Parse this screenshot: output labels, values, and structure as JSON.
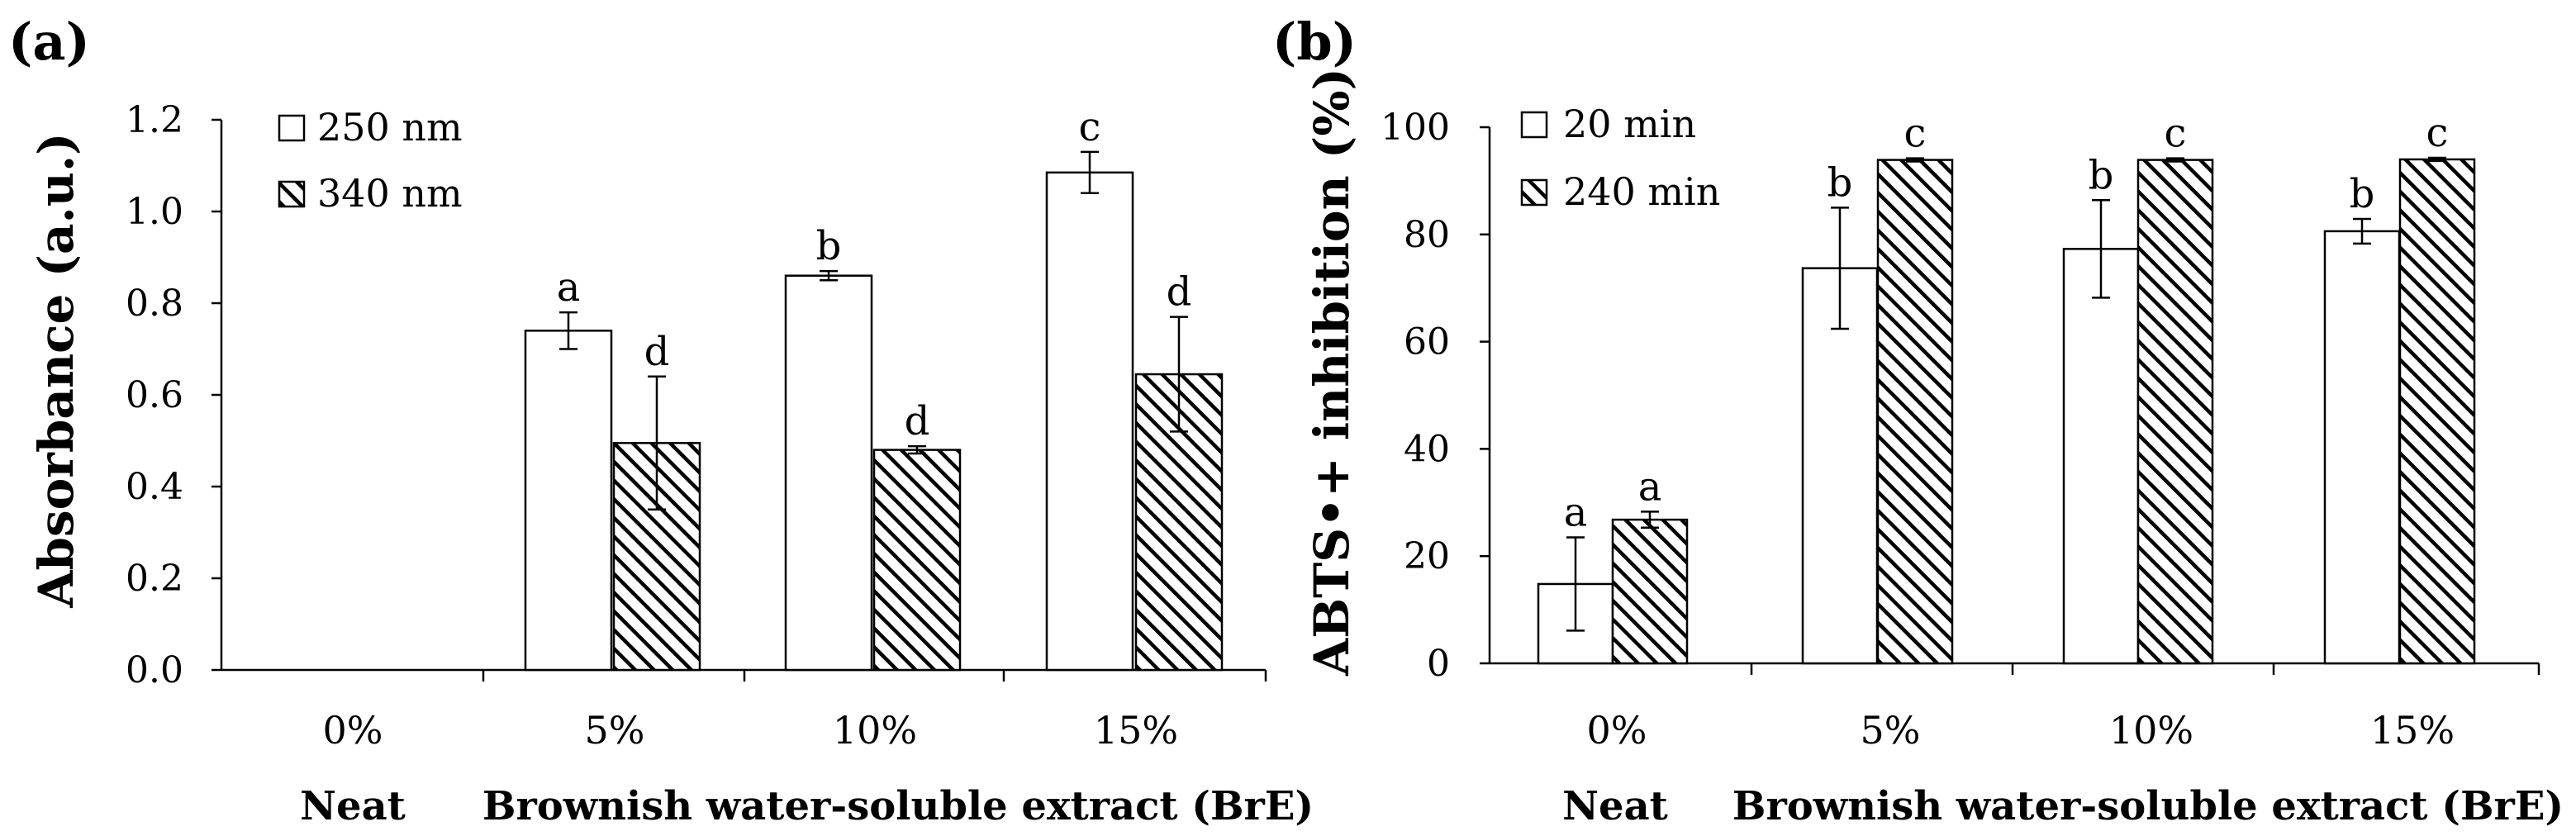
{
  "chart_data": [
    {
      "type": "bar",
      "panel": "(a)",
      "ylabel": "Absorbance (a.u.)",
      "ylim": [
        0,
        1.2
      ],
      "yticks": [
        "0.0",
        "0.2",
        "0.4",
        "0.6",
        "0.8",
        "1.0",
        "1.2"
      ],
      "categories": [
        "0%",
        "5%",
        "10%",
        "15%"
      ],
      "group_labels": [
        "Neat",
        "Brownish water-soluble extract (BrE)"
      ],
      "series": [
        {
          "name": "250 nm",
          "pattern": "open",
          "values": [
            0,
            0.74,
            0.86,
            1.085
          ],
          "errors": [
            0,
            0.04,
            0.01,
            0.045
          ],
          "letters": [
            "",
            "a",
            "b",
            "c"
          ]
        },
        {
          "name": "340 nm",
          "pattern": "hatched",
          "values": [
            0,
            0.495,
            0.48,
            0.645
          ],
          "errors": [
            0,
            0.145,
            0.008,
            0.125
          ],
          "letters": [
            "",
            "d",
            "d",
            "d"
          ]
        }
      ]
    },
    {
      "type": "bar",
      "panel": "(b)",
      "ylabel": "ABTS•+ inhibition (%)",
      "ylim": [
        0,
        100
      ],
      "yticks": [
        "0",
        "20",
        "40",
        "60",
        "80",
        "100"
      ],
      "categories": [
        "0%",
        "5%",
        "10%",
        "15%"
      ],
      "group_labels": [
        "Neat",
        "Brownish water-soluble extract (BrE)"
      ],
      "series": [
        {
          "name": "20 min",
          "pattern": "open",
          "values": [
            14.8,
            73.7,
            77.3,
            80.6
          ],
          "errors": [
            8.7,
            11.3,
            9.1,
            2.3
          ],
          "letters": [
            "a",
            "b",
            "b",
            "b"
          ]
        },
        {
          "name": "240 min",
          "pattern": "hatched",
          "values": [
            26.8,
            93.9,
            93.9,
            94.0
          ],
          "errors": [
            1.5,
            0.3,
            0.3,
            0.3
          ],
          "letters": [
            "a",
            "c",
            "c",
            "c"
          ]
        }
      ]
    }
  ]
}
